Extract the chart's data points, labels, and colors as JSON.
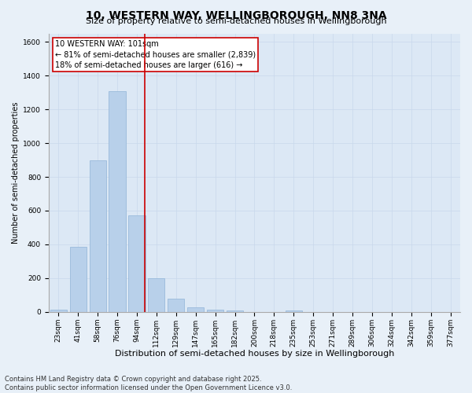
{
  "title": "10, WESTERN WAY, WELLINGBOROUGH, NN8 3NA",
  "subtitle": "Size of property relative to semi-detached houses in Wellingborough",
  "xlabel": "Distribution of semi-detached houses by size in Wellingborough",
  "ylabel": "Number of semi-detached properties",
  "bar_labels": [
    "23sqm",
    "41sqm",
    "58sqm",
    "76sqm",
    "94sqm",
    "112sqm",
    "129sqm",
    "147sqm",
    "165sqm",
    "182sqm",
    "200sqm",
    "218sqm",
    "235sqm",
    "253sqm",
    "271sqm",
    "289sqm",
    "306sqm",
    "324sqm",
    "342sqm",
    "359sqm",
    "377sqm"
  ],
  "bar_values": [
    15,
    385,
    900,
    1310,
    570,
    200,
    80,
    25,
    15,
    10,
    0,
    0,
    10,
    0,
    0,
    0,
    0,
    0,
    0,
    0,
    0
  ],
  "bar_color": "#b8d0ea",
  "bar_edge_color": "#90b4d8",
  "marker_line_color": "#cc0000",
  "annotation_line1": "10 WESTERN WAY: 101sqm",
  "annotation_line2": "← 81% of semi-detached houses are smaller (2,839)",
  "annotation_line3": "18% of semi-detached houses are larger (616) →",
  "annotation_box_facecolor": "#ffffff",
  "annotation_box_edgecolor": "#cc0000",
  "ylim": [
    0,
    1650
  ],
  "yticks": [
    0,
    200,
    400,
    600,
    800,
    1000,
    1200,
    1400,
    1600
  ],
  "grid_color": "#c8d8eb",
  "plot_bg_color": "#dce8f5",
  "fig_bg_color": "#e8f0f8",
  "footnote1": "Contains HM Land Registry data © Crown copyright and database right 2025.",
  "footnote2": "Contains public sector information licensed under the Open Government Licence v3.0.",
  "title_fontsize": 10,
  "subtitle_fontsize": 8,
  "xlabel_fontsize": 8,
  "ylabel_fontsize": 7,
  "tick_fontsize": 6.5,
  "annotation_fontsize": 7,
  "footnote_fontsize": 6
}
